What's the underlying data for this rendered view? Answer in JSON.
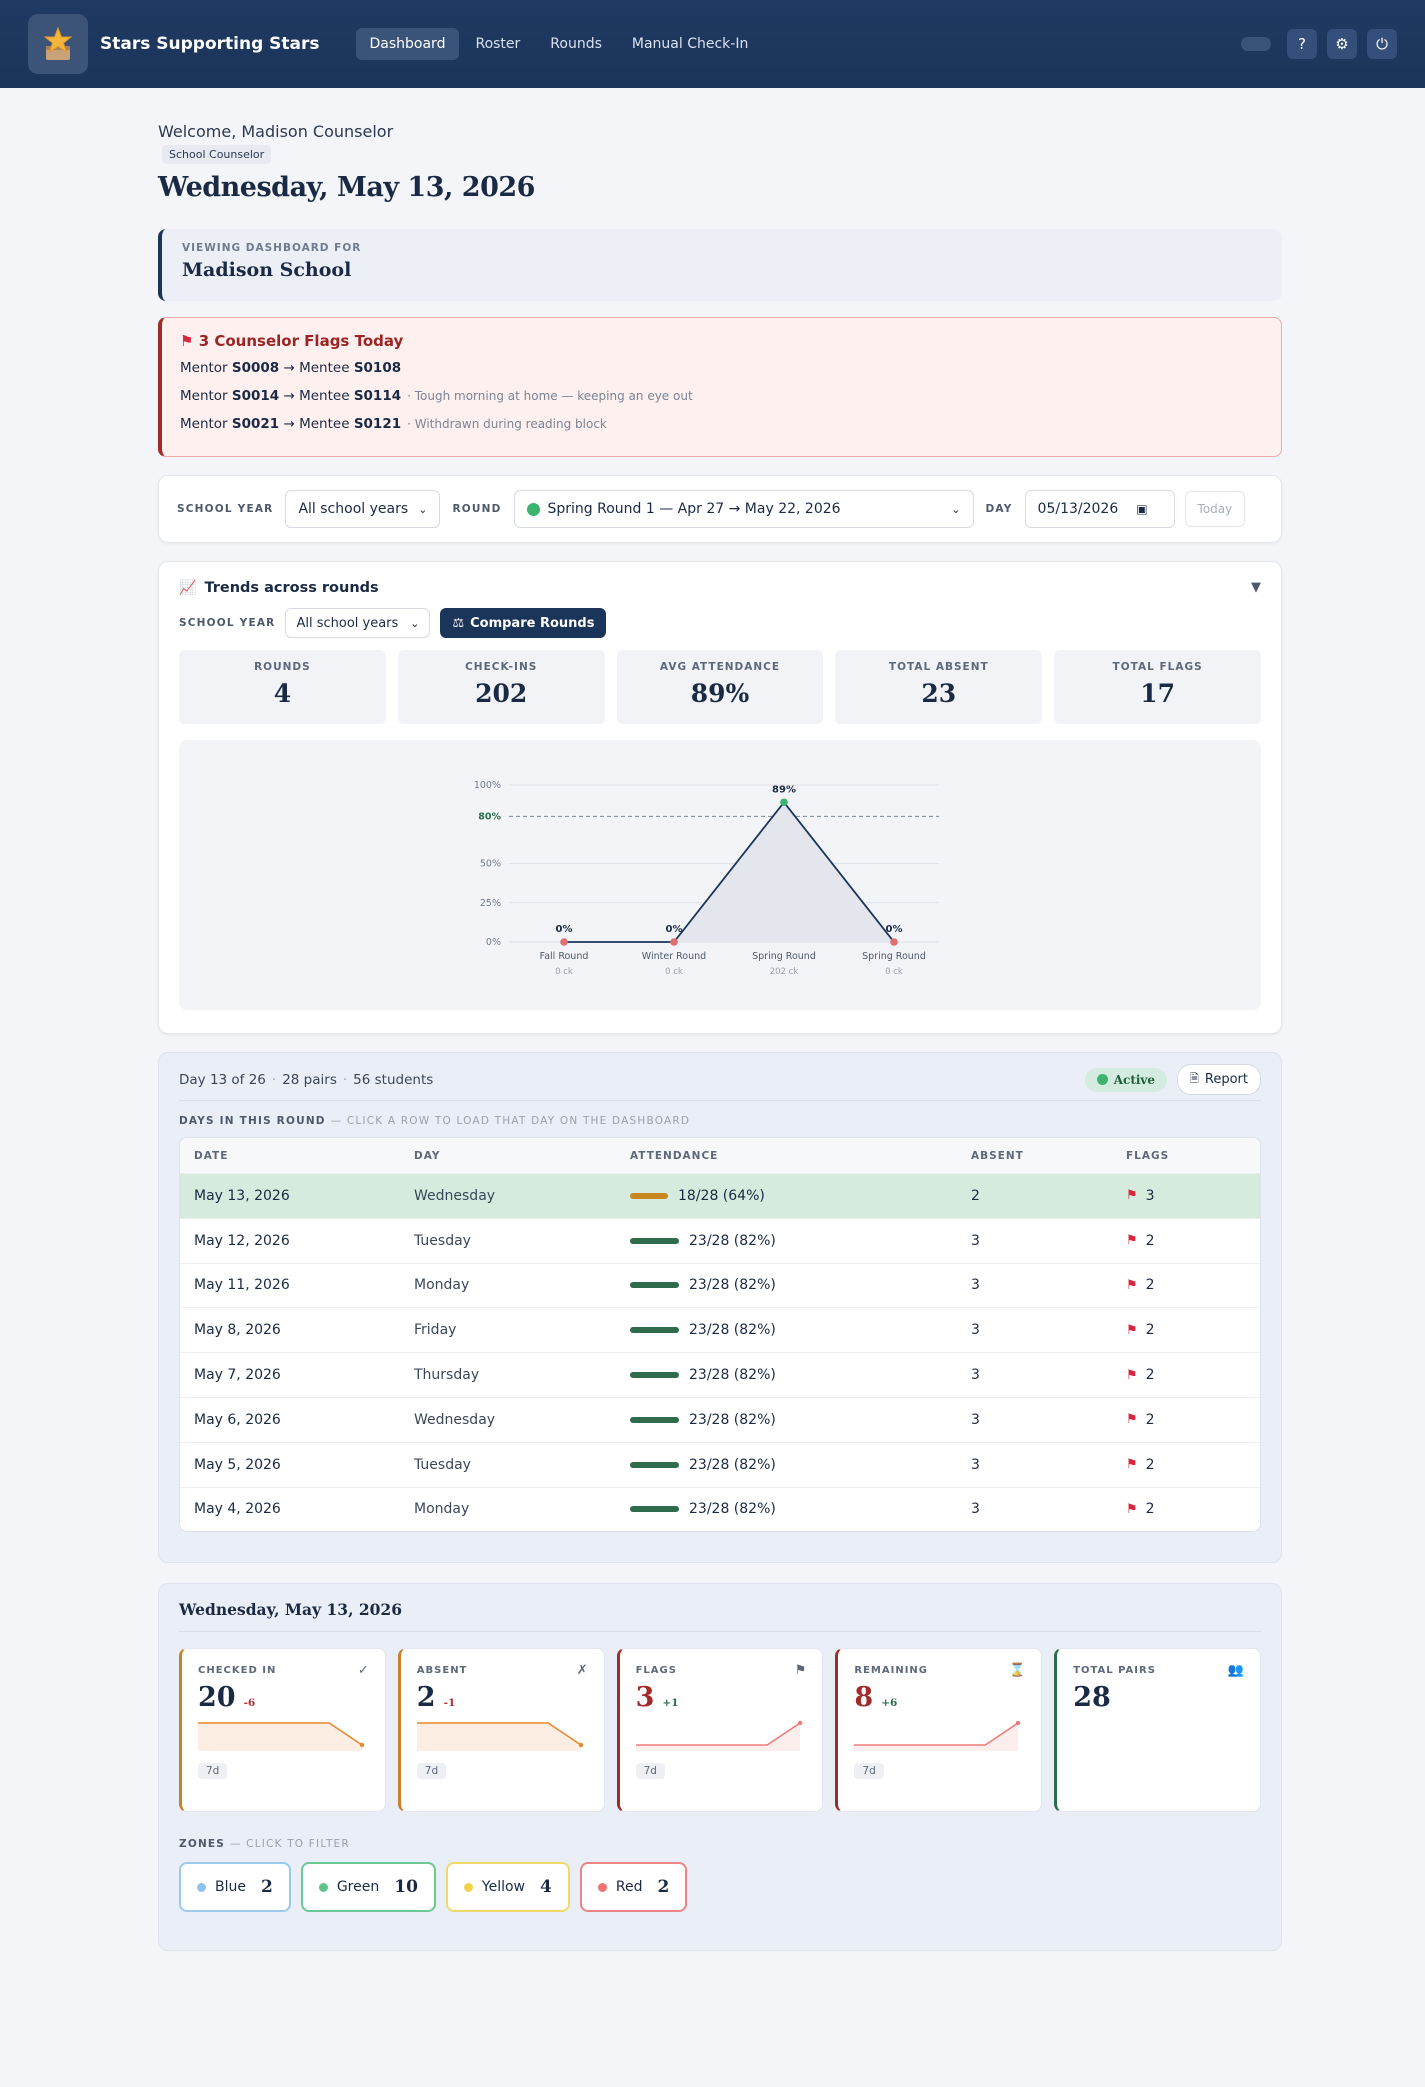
{
  "app": {
    "brand": "Stars Supporting Stars",
    "nav": [
      {
        "label": "Dashboard",
        "active": true
      },
      {
        "label": "Roster",
        "active": false
      },
      {
        "label": "Rounds",
        "active": false
      },
      {
        "label": "Manual Check-In",
        "active": false
      }
    ],
    "icons": [
      "star-logo-icon",
      "help-icon",
      "gear-icon",
      "power-icon"
    ]
  },
  "header": {
    "welcome": "Welcome, Madison Counselor",
    "role": "School Counselor",
    "date": "Wednesday, May 13, 2026"
  },
  "viewing": {
    "label": "VIEWING DASHBOARD FOR",
    "school": "Madison School"
  },
  "flags": {
    "title": "3 Counselor Flags Today",
    "items": [
      {
        "mentor_prefix": "Mentor ",
        "mentor": "S0008",
        "arrow": " → Mentee ",
        "mentee": "S0108",
        "note": ""
      },
      {
        "mentor_prefix": "Mentor ",
        "mentor": "S0014",
        "arrow": " → Mentee ",
        "mentee": "S0114",
        "note": "· Tough morning at home — keeping an eye out"
      },
      {
        "mentor_prefix": "Mentor ",
        "mentor": "S0021",
        "arrow": " → Mentee ",
        "mentee": "S0121",
        "note": "· Withdrawn during reading block"
      }
    ]
  },
  "filters": {
    "school_year_label": "SCHOOL YEAR",
    "school_year_value": "All school years",
    "round_label": "ROUND",
    "round_value": "Spring Round 1 — Apr 27 → May 22, 2026",
    "day_label": "DAY",
    "day_value": "05/13/2026",
    "today_button": "Today"
  },
  "trends": {
    "title": "Trends across rounds",
    "school_year_label": "SCHOOL YEAR",
    "school_year_value": "All school years",
    "compare_button": "Compare Rounds",
    "stats": [
      {
        "label": "ROUNDS",
        "value": "4"
      },
      {
        "label": "CHECK-INS",
        "value": "202"
      },
      {
        "label": "AVG ATTENDANCE",
        "value": "89%"
      },
      {
        "label": "TOTAL ABSENT",
        "value": "23"
      },
      {
        "label": "TOTAL FLAGS",
        "value": "17"
      }
    ]
  },
  "chart_data": {
    "type": "line",
    "x": [
      "Fall Round",
      "Winter Round",
      "Spring Round",
      "Spring Round"
    ],
    "x_sublabels": [
      "0 ck",
      "0 ck",
      "202 ck",
      "0 ck"
    ],
    "series": [
      {
        "values": [
          0,
          0,
          89,
          0
        ]
      }
    ],
    "data_labels": [
      "0%",
      "0%",
      "89%",
      "0%"
    ],
    "y_ticks": [
      "0%",
      "25%",
      "50%",
      "80%",
      "100%"
    ],
    "y_tick_values": [
      0,
      25,
      50,
      80,
      100
    ],
    "reference_line": 80,
    "ylim": [
      0,
      100
    ],
    "point_colors": [
      "#e0706e",
      "#e0706e",
      "#3cb371",
      "#e0706e"
    ],
    "line_color": "#1b3459"
  },
  "round": {
    "day_info": "Day 13 of 26",
    "pairs": "28 pairs",
    "students": "56 students",
    "status": "Active",
    "report_button": "Report",
    "days_label": "DAYS IN THIS ROUND",
    "days_hint": "— CLICK A ROW TO LOAD THAT DAY ON THE DASHBOARD",
    "columns": [
      "DATE",
      "DAY",
      "ATTENDANCE",
      "ABSENT",
      "FLAGS"
    ],
    "rows": [
      {
        "date": "May 13, 2026",
        "day": "Wednesday",
        "attendance": "18/28 (64%)",
        "rate": 0.64,
        "bar_color": "#c9871f",
        "absent": "2",
        "flags": "3",
        "selected": true
      },
      {
        "date": "May 12, 2026",
        "day": "Tuesday",
        "attendance": "23/28 (82%)",
        "rate": 0.82,
        "bar_color": "#2f6b4c",
        "absent": "3",
        "flags": "2",
        "selected": false
      },
      {
        "date": "May 11, 2026",
        "day": "Monday",
        "attendance": "23/28 (82%)",
        "rate": 0.82,
        "bar_color": "#2f6b4c",
        "absent": "3",
        "flags": "2",
        "selected": false
      },
      {
        "date": "May 8, 2026",
        "day": "Friday",
        "attendance": "23/28 (82%)",
        "rate": 0.82,
        "bar_color": "#2f6b4c",
        "absent": "3",
        "flags": "2",
        "selected": false
      },
      {
        "date": "May 7, 2026",
        "day": "Thursday",
        "attendance": "23/28 (82%)",
        "rate": 0.82,
        "bar_color": "#2f6b4c",
        "absent": "3",
        "flags": "2",
        "selected": false
      },
      {
        "date": "May 6, 2026",
        "day": "Wednesday",
        "attendance": "23/28 (82%)",
        "rate": 0.82,
        "bar_color": "#2f6b4c",
        "absent": "3",
        "flags": "2",
        "selected": false
      },
      {
        "date": "May 5, 2026",
        "day": "Tuesday",
        "attendance": "23/28 (82%)",
        "rate": 0.82,
        "bar_color": "#2f6b4c",
        "absent": "3",
        "flags": "2",
        "selected": false
      },
      {
        "date": "May 4, 2026",
        "day": "Monday",
        "attendance": "23/28 (82%)",
        "rate": 0.82,
        "bar_color": "#2f6b4c",
        "absent": "3",
        "flags": "2",
        "selected": false
      }
    ]
  },
  "day": {
    "title": "Wednesday, May 13, 2026",
    "kpis": [
      {
        "label": "CHECKED IN",
        "value": "20",
        "delta": "-6",
        "delta_color": "#b03030",
        "icon": "check-icon",
        "glyph": "✓",
        "tag": "7d",
        "value_color": "#1b2a44",
        "style": "orange",
        "trend": [
          26,
          26,
          26,
          26,
          26,
          20
        ],
        "spark_color": "#e8882f",
        "fill": "#fdeee3"
      },
      {
        "label": "ABSENT",
        "value": "2",
        "delta": "-1",
        "delta_color": "#b03030",
        "icon": "x-icon",
        "glyph": "✗",
        "tag": "7d",
        "value_color": "#1b2a44",
        "style": "orange",
        "trend": [
          3,
          3,
          3,
          3,
          3,
          2
        ],
        "spark_color": "#e8882f",
        "fill": "#fdeee3"
      },
      {
        "label": "FLAGS",
        "value": "3",
        "delta": "+1",
        "delta_color": "#2b6e4c",
        "icon": "flag-icon",
        "glyph": "⚑",
        "tag": "7d",
        "value_color": "#a02b2b",
        "style": "red",
        "trend": [
          2,
          2,
          2,
          2,
          2,
          3
        ],
        "spark_color": "#f07a7a",
        "fill": "#fdeeee"
      },
      {
        "label": "REMAINING",
        "value": "8",
        "delta": "+6",
        "delta_color": "#2b6e4c",
        "icon": "hourglass-icon",
        "glyph": "⌛",
        "tag": "7d",
        "value_color": "#a02b2b",
        "style": "red",
        "trend": [
          2,
          2,
          2,
          2,
          2,
          8
        ],
        "spark_color": "#f07a7a",
        "fill": "#fdeeee"
      },
      {
        "label": "TOTAL PAIRS",
        "value": "28",
        "delta": "",
        "delta_color": "#2b6e4c",
        "icon": "people-icon",
        "glyph": "👥",
        "tag": "",
        "value_color": "#1b2a44",
        "style": "dgreen",
        "trend": [],
        "spark_color": "",
        "fill": ""
      }
    ],
    "zones_label": "ZONES",
    "zones_hint": "— CLICK TO FILTER",
    "zones": [
      {
        "name": "Blue",
        "count": "2",
        "color": "#8fc3e8",
        "border": "#9cc9ec"
      },
      {
        "name": "Green",
        "count": "10",
        "color": "#5fc38a",
        "border": "#6cc996"
      },
      {
        "name": "Yellow",
        "count": "4",
        "color": "#f1d34a",
        "border": "#f0d96a"
      },
      {
        "name": "Red",
        "count": "2",
        "color": "#ef7474",
        "border": "#ee8484"
      }
    ]
  }
}
